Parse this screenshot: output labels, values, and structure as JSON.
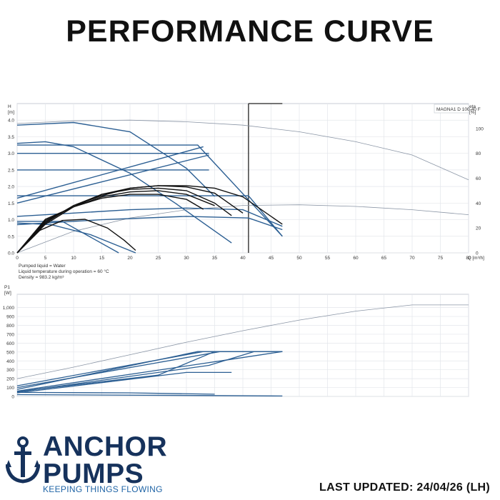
{
  "header": {
    "title": "PERFORMANCE CURVE"
  },
  "footer": {
    "last_updated": "LAST UPDATED: 24/04/26 (LH)"
  },
  "logo": {
    "line1": "ANCHOR",
    "line2": "PUMPS",
    "tagline": "KEEPING THINGS FLOWING"
  },
  "colors": {
    "curve_blue": "#2c5f93",
    "efficiency_black": "#111111",
    "max_gray": "#8a95a5"
  },
  "chart_data": [
    {
      "type": "line",
      "title": "MAGNA1 D 100-40 F",
      "xlabel": "Q [m³/h]",
      "ylabel_line1": "H",
      "ylabel_line2": "[m]",
      "ylabel_right_line1": "eta",
      "ylabel_right_line2": "[%]",
      "xlim": [
        0,
        80
      ],
      "ylim": [
        0,
        4.5
      ],
      "y2lim": [
        0,
        120
      ],
      "x_ticks": [
        0,
        5,
        10,
        15,
        20,
        25,
        30,
        35,
        40,
        45,
        50,
        55,
        60,
        65,
        70,
        75,
        80
      ],
      "y_ticks": [
        0.0,
        0.5,
        1.0,
        1.5,
        2.0,
        2.5,
        3.0,
        3.5,
        4.0
      ],
      "y2_ticks": [
        0,
        20,
        40,
        60,
        80,
        100
      ],
      "grid": true,
      "duty_line_x": 41,
      "notes": [
        "Pumped liquid = Water",
        "Liquid temperature during operation = 60 °C",
        "Density = 983.2 kg/m³"
      ],
      "series": [
        {
          "kind": "max",
          "x": [
            0,
            10,
            20,
            30,
            40,
            50,
            60,
            70,
            80
          ],
          "y": [
            3.9,
            3.98,
            4.0,
            3.95,
            3.85,
            3.65,
            3.35,
            2.95,
            2.2
          ]
        },
        {
          "kind": "max_eff",
          "x": [
            0,
            10,
            20,
            30,
            40,
            50,
            60,
            70,
            80
          ],
          "y": [
            0.0,
            0.65,
            1.05,
            1.3,
            1.43,
            1.45,
            1.4,
            1.3,
            1.15
          ]
        },
        {
          "kind": "curve",
          "x": [
            0,
            10,
            20,
            30,
            35
          ],
          "y": [
            3.85,
            3.93,
            3.65,
            2.55,
            1.7
          ]
        },
        {
          "kind": "curve",
          "x": [
            0,
            5,
            10,
            20,
            28,
            38
          ],
          "y": [
            3.3,
            3.35,
            3.2,
            2.4,
            1.5,
            0.3
          ]
        },
        {
          "kind": "curve",
          "x": [
            0,
            32,
            47
          ],
          "y": [
            3.25,
            3.25,
            0.5
          ]
        },
        {
          "kind": "curve",
          "x": [
            0,
            41,
            47
          ],
          "y": [
            1.72,
            1.72,
            0.5
          ]
        },
        {
          "kind": "curve",
          "x": [
            0,
            33
          ],
          "y": [
            1.65,
            3.2
          ]
        },
        {
          "kind": "curve",
          "x": [
            0,
            34
          ],
          "y": [
            1.5,
            2.95
          ]
        },
        {
          "kind": "curve",
          "x": [
            0,
            34
          ],
          "y": [
            2.5,
            2.5
          ]
        },
        {
          "kind": "curve",
          "x": [
            0,
            34
          ],
          "y": [
            3.0,
            3.0
          ]
        },
        {
          "kind": "curve",
          "x": [
            0,
            6,
            13,
            21
          ],
          "y": [
            0.9,
            0.85,
            0.55,
            0.0
          ]
        },
        {
          "kind": "curve",
          "x": [
            0,
            8,
            18
          ],
          "y": [
            0.95,
            0.95,
            0.0
          ]
        },
        {
          "kind": "curve",
          "x": [
            0,
            10,
            20,
            30,
            40,
            47
          ],
          "y": [
            1.1,
            1.2,
            1.3,
            1.35,
            1.3,
            0.8
          ]
        },
        {
          "kind": "curve",
          "x": [
            0,
            15,
            30,
            41,
            47
          ],
          "y": [
            0.85,
            1.0,
            1.1,
            1.05,
            0.7
          ]
        },
        {
          "kind": "eff",
          "x": [
            0,
            5,
            10,
            15,
            20,
            25,
            30,
            35,
            40,
            47
          ],
          "y": [
            0,
            23,
            37,
            47,
            52,
            54,
            54,
            52,
            45,
            23
          ]
        },
        {
          "kind": "eff",
          "x": [
            0,
            5,
            10,
            15,
            20,
            25,
            30,
            35,
            40
          ],
          "y": [
            0,
            24,
            38,
            46,
            52,
            54,
            53,
            48,
            32
          ]
        },
        {
          "kind": "eff",
          "x": [
            0,
            5,
            10,
            15,
            20,
            25,
            30,
            35,
            38
          ],
          "y": [
            0,
            25,
            38,
            47,
            51,
            52,
            50,
            40,
            30
          ]
        },
        {
          "kind": "eff",
          "x": [
            0,
            5,
            10,
            15,
            20,
            25,
            30,
            35
          ],
          "y": [
            0,
            26,
            37,
            45,
            49,
            50,
            47,
            38
          ]
        },
        {
          "kind": "eff",
          "x": [
            0,
            5,
            10,
            15,
            20,
            25,
            30,
            33
          ],
          "y": [
            0,
            27,
            37,
            44,
            47,
            47,
            43,
            35
          ]
        },
        {
          "kind": "eff",
          "x": [
            0,
            4,
            8,
            12,
            16,
            19,
            21
          ],
          "y": [
            0,
            18,
            26,
            27,
            20,
            10,
            2
          ]
        }
      ]
    },
    {
      "type": "line",
      "xlabel": "",
      "ylabel_line1": "P1",
      "ylabel_line2": "[W]",
      "xlim": [
        0,
        80
      ],
      "ylim": [
        0,
        1150
      ],
      "y_ticks": [
        0,
        100,
        200,
        300,
        400,
        500,
        600,
        700,
        800,
        900,
        1000
      ],
      "y_tick_labels": [
        "0",
        "100",
        "200",
        "300",
        "400",
        "500",
        "600",
        "700",
        "800",
        "900",
        "1,000"
      ],
      "grid": true,
      "series": [
        {
          "kind": "max",
          "x": [
            0,
            10,
            20,
            30,
            40,
            50,
            60,
            70,
            80
          ],
          "y": [
            200,
            330,
            470,
            610,
            740,
            860,
            960,
            1030,
            1030
          ]
        },
        {
          "kind": "curve",
          "x": [
            0,
            33,
            47
          ],
          "y": [
            120,
            505,
            505
          ]
        },
        {
          "kind": "curve",
          "x": [
            0,
            36,
            47
          ],
          "y": [
            100,
            505,
            505
          ]
        },
        {
          "kind": "curve",
          "x": [
            0,
            32,
            38
          ],
          "y": [
            80,
            505,
            505
          ]
        },
        {
          "kind": "curve",
          "x": [
            0,
            36,
            47
          ],
          "y": [
            60,
            400,
            505
          ]
        },
        {
          "kind": "curve",
          "x": [
            0,
            34,
            42
          ],
          "y": [
            50,
            350,
            505
          ]
        },
        {
          "kind": "curve",
          "x": [
            0,
            30,
            38
          ],
          "y": [
            40,
            270,
            270
          ]
        },
        {
          "kind": "curve",
          "x": [
            0,
            25,
            35
          ],
          "y": [
            55,
            240,
            505
          ]
        },
        {
          "kind": "curve",
          "x": [
            0,
            20,
            35
          ],
          "y": [
            45,
            40,
            25
          ]
        },
        {
          "kind": "curve",
          "x": [
            0,
            35,
            47
          ],
          "y": [
            20,
            10,
            5
          ]
        }
      ]
    }
  ]
}
